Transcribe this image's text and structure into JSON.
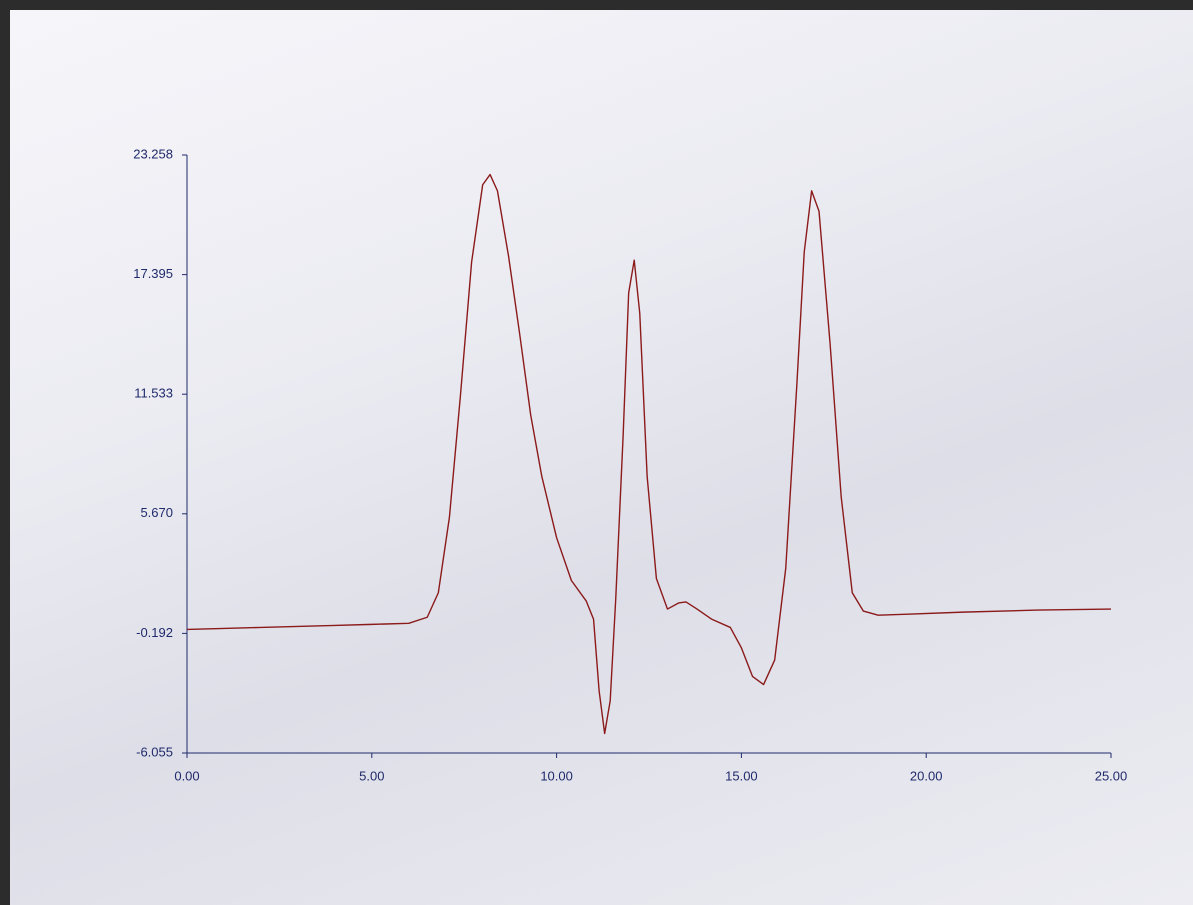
{
  "chart_data": {
    "type": "line",
    "x": [
      0,
      1,
      2,
      3,
      4,
      5,
      6,
      6.5,
      6.8,
      7.1,
      7.4,
      7.7,
      8.0,
      8.2,
      8.4,
      8.7,
      9.0,
      9.3,
      9.6,
      10.0,
      10.4,
      10.8,
      11.0,
      11.15,
      11.3,
      11.45,
      11.6,
      11.8,
      11.95,
      12.1,
      12.25,
      12.45,
      12.7,
      13.0,
      13.3,
      13.5,
      13.8,
      14.2,
      14.7,
      15.0,
      15.3,
      15.6,
      15.9,
      16.2,
      16.5,
      16.7,
      16.9,
      17.1,
      17.4,
      17.7,
      18.0,
      18.3,
      18.7,
      19.5,
      21,
      23,
      25
    ],
    "series": [
      {
        "color": "#8b1a1a",
        "values": [
          0.0,
          0.05,
          0.1,
          0.15,
          0.2,
          0.25,
          0.3,
          0.6,
          1.8,
          5.5,
          11.5,
          18.0,
          21.8,
          22.3,
          21.5,
          18.3,
          14.5,
          10.5,
          7.5,
          4.5,
          2.4,
          1.4,
          0.5,
          -3.0,
          -5.1,
          -3.5,
          1.5,
          9.5,
          16.5,
          18.1,
          15.5,
          7.5,
          2.5,
          1.0,
          1.3,
          1.35,
          1.0,
          0.5,
          0.1,
          -0.9,
          -2.3,
          -2.7,
          -1.5,
          3.0,
          12.0,
          18.5,
          21.5,
          20.5,
          14.0,
          6.5,
          1.8,
          0.9,
          0.7,
          0.75,
          0.85,
          0.95,
          1.0
        ]
      }
    ],
    "xlim": [
      0,
      25
    ],
    "xticks": [
      {
        "value": 0,
        "label": "0.00"
      },
      {
        "value": 5,
        "label": "5.00"
      },
      {
        "value": 10,
        "label": "10.00"
      },
      {
        "value": 15,
        "label": "15.00"
      },
      {
        "value": 20,
        "label": "20.00"
      },
      {
        "value": 25,
        "label": "25.00"
      }
    ],
    "ylim": [
      -6.055,
      23.258
    ],
    "yticks": [
      -6.055,
      -0.192,
      {
        "value": 5.67,
        "label": "5.670"
      },
      11.533,
      17.395,
      23.258
    ],
    "axis_color": "#1f2a6b"
  }
}
